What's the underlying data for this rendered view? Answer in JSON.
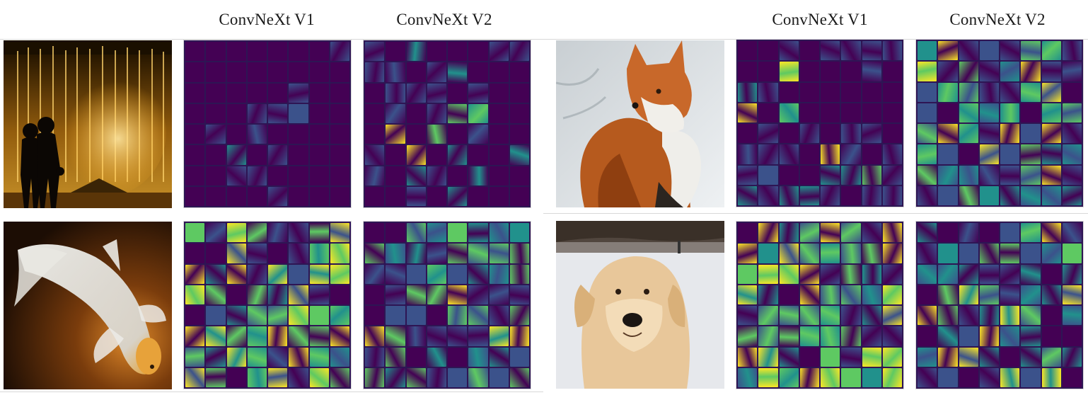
{
  "column_headers": {
    "left_v1": "ConvNeXt V1",
    "left_v2": "ConvNeXt V2",
    "right_v1": "ConvNeXt V1",
    "right_v2": "ConvNeXt V2"
  },
  "example_images": [
    {
      "id": "fountain",
      "subject": "couple silhouette in front of illuminated fountain"
    },
    {
      "id": "fish",
      "subject": "white koi fish on dark orange background"
    },
    {
      "id": "fox",
      "subject": "red fox in snow"
    },
    {
      "id": "dog",
      "subject": "golden retriever puppy on snow"
    }
  ],
  "feature_maps": {
    "fountain_v1": "dark",
    "fountain_v2": "sparse",
    "fish_v1": "saturated",
    "fish_v2": "diverse",
    "fox_v1": "sparse",
    "fox_v2": "diverse",
    "dog_v1": "saturated",
    "dog_v2": "diverse"
  },
  "colormap": [
    "#440154",
    "#3b528b",
    "#21918c",
    "#5ec962",
    "#fde725"
  ]
}
